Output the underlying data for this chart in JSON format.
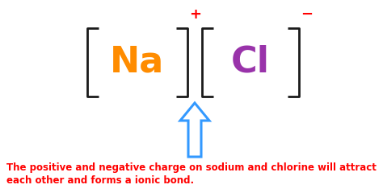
{
  "background_color": "#ffffff",
  "na_text": "Na",
  "cl_text": "Cl",
  "na_color": "#FF8C00",
  "cl_color": "#9933AA",
  "plus_color": "#FF0000",
  "minus_color": "#FF0000",
  "bracket_color": "#1a1a1a",
  "arrow_color": "#3399FF",
  "caption_color": "#FF0000",
  "caption_line1": "The positive and negative charge on sodium and chlorine will attract",
  "caption_line2": "each other and forms a ionic bond.",
  "caption_fontsize": 8.5,
  "na_fontsize": 32,
  "cl_fontsize": 32,
  "charge_fontsize": 13,
  "bracket_linewidth": 2.0
}
